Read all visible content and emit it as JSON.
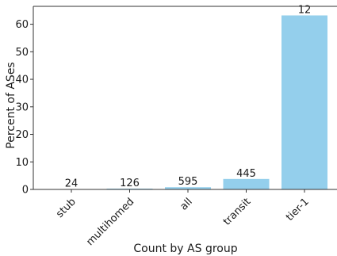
{
  "chart_data": {
    "type": "bar",
    "categories": [
      "stub",
      "multihomed",
      "all",
      "transit",
      "tier-1"
    ],
    "values": [
      0.1,
      0.3,
      0.8,
      3.8,
      63.2
    ],
    "data_labels": [
      "24",
      "126",
      "595",
      "445",
      "12"
    ],
    "xlabel": "Count by AS group",
    "ylabel": "Percent of ASes",
    "ylim": [
      0,
      66.5
    ],
    "yticks": [
      0,
      10,
      20,
      30,
      40,
      50,
      60
    ],
    "grid": false,
    "bar_color": "#94cfec"
  }
}
